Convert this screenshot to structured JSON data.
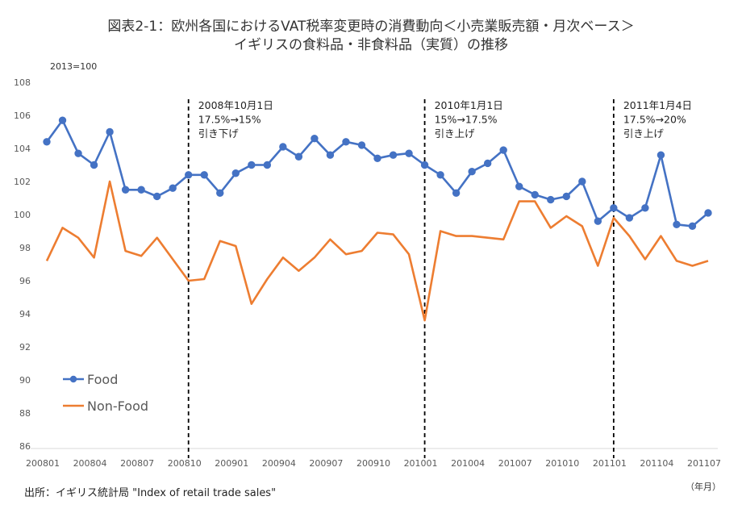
{
  "chart_data": {
    "type": "line",
    "title": "図表2-1：欧州各国におけるVAT税率変更時の消費動向＜小売業販売額・月次ベース＞",
    "subtitle": "イギリスの食料品・非食料品（実質）の推移",
    "unit_label": "2013=100",
    "x_unit_label": "（年月）",
    "source": "出所：イギリス統計局 \"Index of retail trade sales\"",
    "ylim": [
      86,
      108
    ],
    "yticks": [
      86,
      88,
      90,
      92,
      94,
      96,
      98,
      100,
      102,
      104,
      106,
      108
    ],
    "grid": false,
    "legend": "lower-left",
    "x": [
      "200801",
      "200802",
      "200803",
      "200804",
      "200805",
      "200806",
      "200807",
      "200808",
      "200809",
      "200810",
      "200811",
      "200812",
      "200901",
      "200902",
      "200903",
      "200904",
      "200905",
      "200906",
      "200907",
      "200908",
      "200909",
      "200910",
      "200911",
      "200912",
      "201001",
      "201002",
      "201003",
      "201004",
      "201005",
      "201006",
      "201007",
      "201008",
      "201009",
      "201010",
      "201011",
      "201012",
      "201101",
      "201102",
      "201103",
      "201104",
      "201105",
      "201106",
      "201107"
    ],
    "xtick_labels": [
      "200801",
      "200804",
      "200807",
      "200810",
      "200901",
      "200904",
      "200907",
      "200910",
      "201001",
      "201004",
      "201007",
      "201010",
      "201101",
      "201104",
      "201107"
    ],
    "series": [
      {
        "name": "Food",
        "color": "#4472C4",
        "marker": "circle",
        "values": [
          104.4,
          105.7,
          103.7,
          103.0,
          105.0,
          101.5,
          101.5,
          101.1,
          101.6,
          102.4,
          102.4,
          101.3,
          102.5,
          103.0,
          103.0,
          104.1,
          103.5,
          104.6,
          103.6,
          104.4,
          104.2,
          103.4,
          103.6,
          103.7,
          103.0,
          102.4,
          101.3,
          102.6,
          103.1,
          103.9,
          101.7,
          101.2,
          100.9,
          101.1,
          102.0,
          99.6,
          100.4,
          99.8,
          100.4,
          103.6,
          99.4,
          99.3,
          100.1
        ]
      },
      {
        "name": "Non-Food",
        "color": "#ED7D31",
        "marker": "none",
        "values": [
          97.2,
          99.2,
          98.6,
          97.4,
          102.0,
          97.8,
          97.5,
          98.6,
          97.3,
          96.0,
          96.1,
          98.4,
          98.1,
          94.6,
          96.1,
          97.4,
          96.6,
          97.4,
          98.5,
          97.6,
          97.8,
          98.9,
          98.8,
          97.6,
          93.6,
          99.0,
          98.7,
          98.7,
          98.6,
          98.5,
          100.8,
          100.8,
          99.2,
          99.9,
          99.3,
          96.9,
          99.8,
          98.7,
          97.3,
          98.7,
          97.2,
          96.9,
          97.2
        ]
      }
    ],
    "annotations": [
      {
        "at": "200810",
        "lines": [
          "2008年10月1日",
          "17.5%→15%",
          "引き下げ"
        ]
      },
      {
        "at": "201001",
        "lines": [
          "2010年1月1日",
          "15%→17.5%",
          "引き上げ"
        ]
      },
      {
        "at": "201101",
        "lines": [
          "2011年1月4日",
          "17.5%→20%",
          "引き上げ"
        ]
      }
    ]
  }
}
